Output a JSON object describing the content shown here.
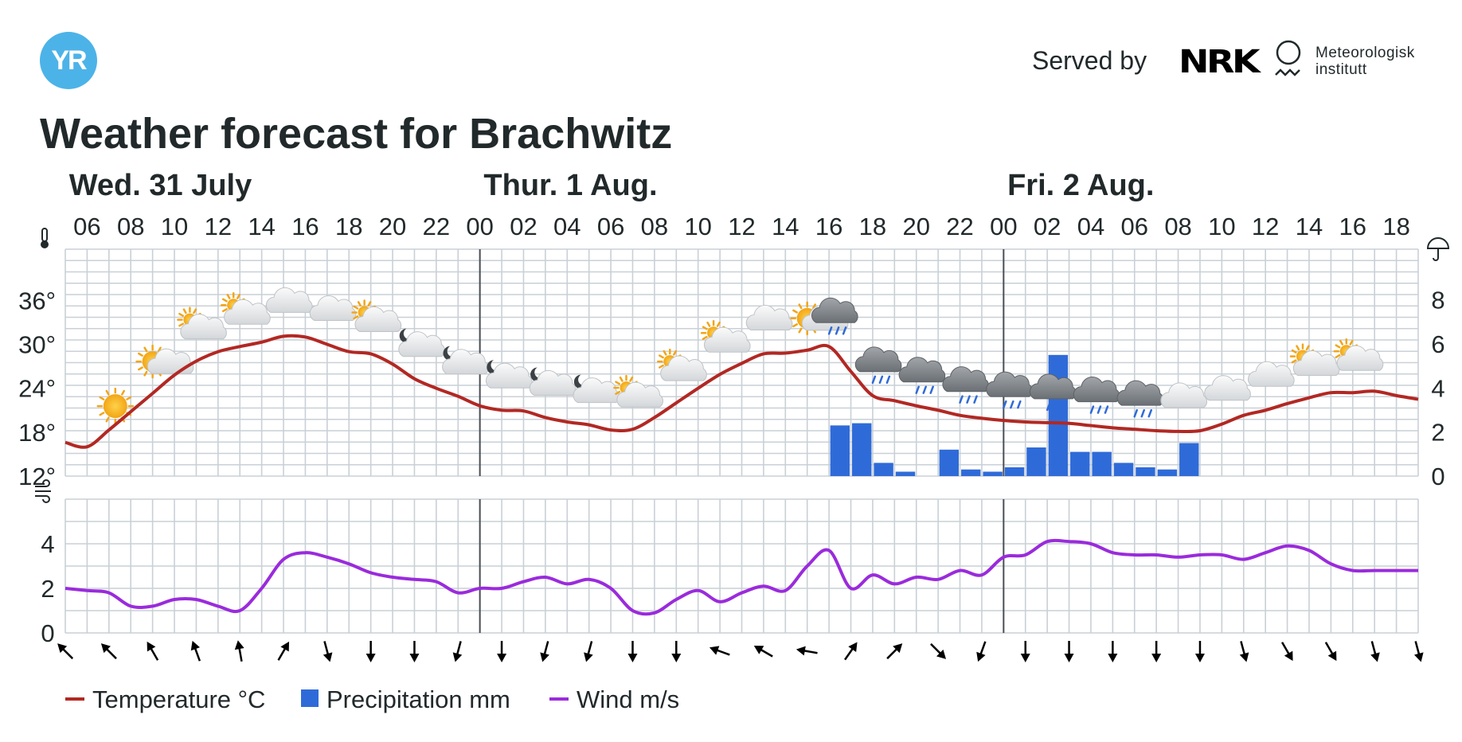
{
  "header": {
    "logo_text": "YR",
    "served_by": "Served by",
    "nrk_text": "NRK",
    "met_name_line1": "Meteorologisk",
    "met_name_line2": "institutt"
  },
  "title": "Weather forecast for Brachwitz",
  "colors": {
    "temperature": "#b22823",
    "precipitation": "#2f6bd8",
    "wind": "#9a2bdc",
    "grid": "#c9d0d6",
    "day_divider": "#4a4f55",
    "logo": "#4cb3e8"
  },
  "chart_data": {
    "type": "line",
    "days": [
      "Wed. 31 July",
      "Thur. 1 Aug.",
      "Fri. 2 Aug."
    ],
    "hour_ticks": [
      "06",
      "08",
      "10",
      "12",
      "14",
      "16",
      "18",
      "20",
      "22",
      "00",
      "02",
      "04",
      "06",
      "08",
      "10",
      "12",
      "14",
      "16",
      "18",
      "20",
      "22",
      "00",
      "02",
      "04",
      "06",
      "08",
      "10",
      "12",
      "14",
      "16",
      "18"
    ],
    "start_hour": 5,
    "end_hour": 67,
    "temp_axis": {
      "label_icon": "thermometer-icon",
      "ticks": [
        "12°",
        "18°",
        "24°",
        "30°",
        "36°"
      ],
      "ylim": [
        12,
        43
      ]
    },
    "precip_axis": {
      "label_icon": "umbrella-icon",
      "ticks": [
        "0",
        "2",
        "4",
        "6",
        "8"
      ],
      "ylim": [
        0,
        10.3
      ]
    },
    "wind_axis": {
      "label_icon": "wind-icon",
      "ticks": [
        "0",
        "2",
        "4"
      ],
      "ylim": [
        0,
        6
      ]
    },
    "series": [
      {
        "name": "Temperature °C",
        "x": [
          5,
          6,
          7,
          8,
          9,
          10,
          11,
          12,
          13,
          14,
          15,
          16,
          17,
          18,
          19,
          20,
          21,
          22,
          23,
          24,
          25,
          26,
          27,
          28,
          29,
          30,
          31,
          32,
          33,
          34,
          35,
          36,
          37,
          38,
          39,
          40,
          41,
          42,
          43,
          44,
          45,
          46,
          47,
          48,
          49,
          50,
          51,
          52,
          53,
          54,
          55,
          56,
          57,
          58,
          59,
          60,
          61,
          62,
          63,
          64,
          65,
          66,
          67
        ],
        "values": [
          16.6,
          16.0,
          18.3,
          20.8,
          23.3,
          25.8,
          27.7,
          29.0,
          29.7,
          30.3,
          31.1,
          31.0,
          30.0,
          29.0,
          28.7,
          27.3,
          25.3,
          24.0,
          22.9,
          21.6,
          21.0,
          20.9,
          20.0,
          19.4,
          19.0,
          18.3,
          18.4,
          20.0,
          22.0,
          24.0,
          25.9,
          27.4,
          28.7,
          28.8,
          29.2,
          29.7,
          26.3,
          23.0,
          22.3,
          21.6,
          21.0,
          20.3,
          19.9,
          19.6,
          19.4,
          19.3,
          19.2,
          18.9,
          18.6,
          18.4,
          18.2,
          18.1,
          18.2,
          19.1,
          20.3,
          21.0,
          21.9,
          22.7,
          23.4,
          23.4,
          23.6,
          23.0,
          22.5
        ]
      },
      {
        "name": "Precipitation mm",
        "x": [
          40,
          41,
          42,
          43,
          45,
          46,
          47,
          48,
          49,
          50,
          51,
          52,
          53,
          54,
          55,
          56
        ],
        "values": [
          2.3,
          2.4,
          0.6,
          0.2,
          1.2,
          0.3,
          0.2,
          0.4,
          1.3,
          5.5,
          1.1,
          1.1,
          0.6,
          0.4,
          0.3,
          1.5
        ]
      },
      {
        "name": "Wind m/s",
        "x": [
          5,
          6,
          7,
          8,
          9,
          10,
          11,
          12,
          13,
          14,
          15,
          16,
          17,
          18,
          19,
          20,
          21,
          22,
          23,
          24,
          25,
          26,
          27,
          28,
          29,
          30,
          31,
          32,
          33,
          34,
          35,
          36,
          37,
          38,
          39,
          40,
          41,
          42,
          43,
          44,
          45,
          46,
          47,
          48,
          49,
          50,
          51,
          52,
          53,
          54,
          55,
          56,
          57,
          58,
          59,
          60,
          61,
          62,
          63,
          64,
          65,
          66,
          67
        ],
        "values": [
          2.0,
          1.9,
          1.8,
          1.2,
          1.2,
          1.5,
          1.5,
          1.2,
          1.0,
          2.0,
          3.3,
          3.6,
          3.4,
          3.1,
          2.7,
          2.5,
          2.4,
          2.3,
          1.8,
          2.0,
          2.0,
          2.3,
          2.5,
          2.2,
          2.4,
          2.0,
          1.0,
          0.9,
          1.5,
          1.9,
          1.4,
          1.8,
          2.1,
          1.9,
          3.0,
          3.7,
          2.0,
          2.6,
          2.2,
          2.5,
          2.4,
          2.8,
          2.6,
          3.4,
          3.5,
          4.1,
          4.1,
          4.0,
          3.6,
          3.5,
          3.5,
          3.4,
          3.5,
          3.5,
          3.3,
          3.6,
          3.9,
          3.7,
          3.1,
          2.8,
          2.8,
          2.8,
          2.8
        ]
      }
    ],
    "weather_symbols": [
      {
        "hour": 7,
        "icon": "sun-icon"
      },
      {
        "hour": 9,
        "icon": "partly-cloudy-day-icon"
      },
      {
        "hour": 11,
        "icon": "cloud-sun-icon"
      },
      {
        "hour": 13,
        "icon": "cloud-sun-icon"
      },
      {
        "hour": 15,
        "icon": "cloud-icon"
      },
      {
        "hour": 17,
        "icon": "cloud-icon"
      },
      {
        "hour": 19,
        "icon": "cloud-sun-icon"
      },
      {
        "hour": 21,
        "icon": "cloud-moon-icon"
      },
      {
        "hour": 23,
        "icon": "cloud-moon-icon"
      },
      {
        "hour": 25,
        "icon": "cloud-moon-icon"
      },
      {
        "hour": 27,
        "icon": "cloud-moon-icon"
      },
      {
        "hour": 29,
        "icon": "cloud-moon-icon"
      },
      {
        "hour": 31,
        "icon": "cloud-sun-icon"
      },
      {
        "hour": 33,
        "icon": "cloud-sun-icon"
      },
      {
        "hour": 35,
        "icon": "cloud-sun-icon"
      },
      {
        "hour": 37,
        "icon": "cloud-icon"
      },
      {
        "hour": 39,
        "icon": "partly-cloudy-day-icon"
      },
      {
        "hour": 40,
        "icon": "rain-cloud-icon"
      },
      {
        "hour": 42,
        "icon": "rain-cloud-icon"
      },
      {
        "hour": 44,
        "icon": "rain-cloud-icon"
      },
      {
        "hour": 46,
        "icon": "rain-cloud-icon"
      },
      {
        "hour": 48,
        "icon": "rain-cloud-icon"
      },
      {
        "hour": 50,
        "icon": "rain-cloud-icon"
      },
      {
        "hour": 52,
        "icon": "rain-cloud-icon"
      },
      {
        "hour": 54,
        "icon": "rain-cloud-icon"
      },
      {
        "hour": 56,
        "icon": "cloud-icon"
      },
      {
        "hour": 58,
        "icon": "cloud-icon"
      },
      {
        "hour": 60,
        "icon": "cloud-icon"
      },
      {
        "hour": 62,
        "icon": "cloud-sun-icon"
      },
      {
        "hour": 64,
        "icon": "cloud-sun-icon"
      }
    ],
    "wind_directions_deg": [
      135,
      135,
      150,
      160,
      170,
      210,
      345,
      0,
      0,
      15,
      0,
      15,
      15,
      0,
      0,
      110,
      120,
      100,
      215,
      225,
      315,
      20,
      0,
      0,
      0,
      0,
      0,
      345,
      330,
      330,
      345,
      345
    ],
    "legend": [
      "Temperature °C",
      "Precipitation mm",
      "Wind m/s"
    ],
    "legend_position": "bottom-left",
    "grid": true
  }
}
